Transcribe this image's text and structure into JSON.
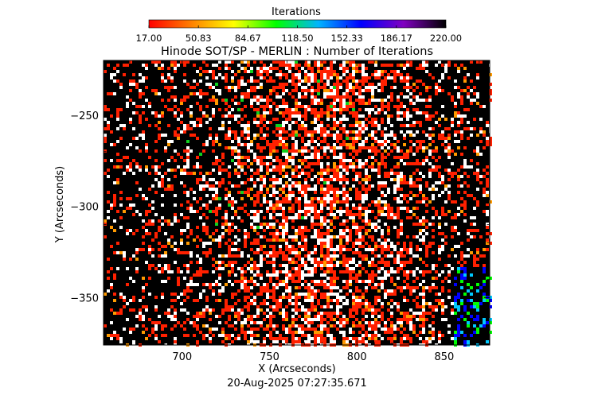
{
  "chart_data": {
    "type": "heatmap",
    "title": "Hinode SOT/SP - MERLIN : Number of Iterations",
    "xlabel": "X (Arcseconds)",
    "ylabel": "Y (Arcseconds)",
    "xlim": [
      655,
      876
    ],
    "ylim": [
      -376,
      -220
    ],
    "x_ticks": [
      700,
      750,
      800,
      850
    ],
    "y_ticks": [
      -250,
      -300,
      -350
    ],
    "x_tick_labels": [
      "700",
      "750",
      "800",
      "850"
    ],
    "y_tick_labels": [
      "−250",
      "−300",
      "−350"
    ],
    "colorbar": {
      "title": "Iterations",
      "min": 17.0,
      "max": 220.0,
      "tick_labels": [
        "17.00",
        "50.83",
        "84.67",
        "118.50",
        "152.33",
        "186.17",
        "220.00"
      ],
      "colors": [
        "#ff0000",
        "#ff8000",
        "#ffff00",
        "#00ff00",
        "#00b4ff",
        "#0000ff",
        "#8000c0",
        "#000000"
      ]
    },
    "timestamp": "20-Aug-2025 07:27:35.671"
  }
}
